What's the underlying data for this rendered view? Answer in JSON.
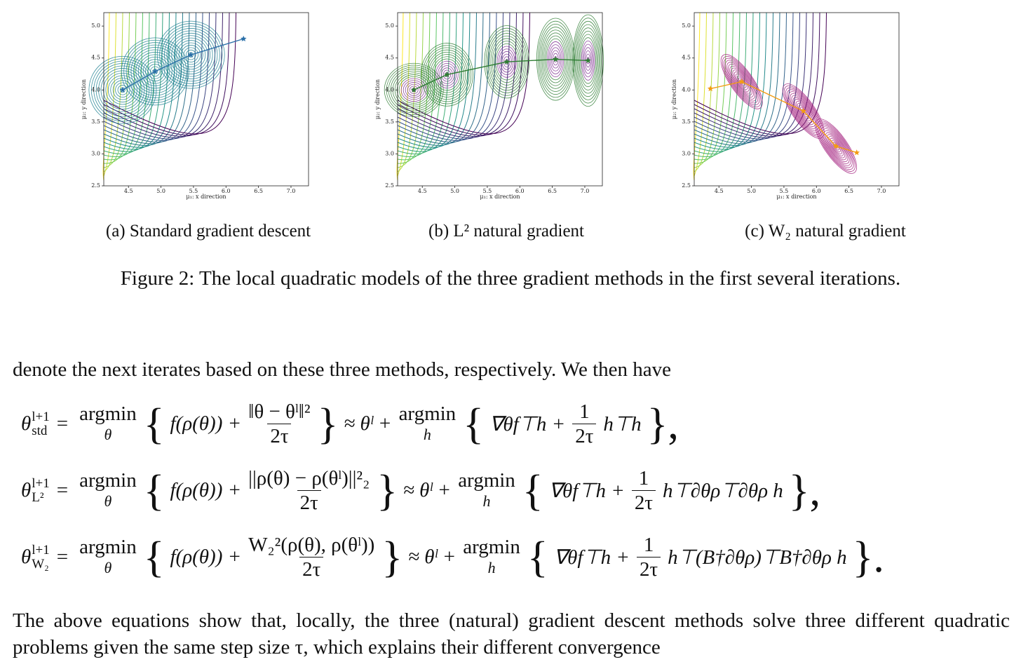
{
  "charts": [
    {
      "type": "line",
      "caption": "(a) Standard gradient descent",
      "xlabel": "μ₁: x direction",
      "ylabel": "μ₂: y direction",
      "xlim": [
        4.12,
        7.27
      ],
      "ylim": [
        2.5,
        5.21
      ],
      "xticks": [
        4.5,
        {
          "value": 5.0,
          "label": "5.0"
        },
        5.5,
        {
          "value": 6.0,
          "label": "6.0"
        },
        6.5,
        {
          "value": 7.0,
          "label": "7.0"
        }
      ],
      "yticks": [
        2.5,
        {
          "value": 3.0,
          "label": "3.0"
        },
        3.5,
        {
          "value": 4.0,
          "label": "4.0"
        },
        4.5,
        {
          "value": 5.0,
          "label": "5.0"
        }
      ],
      "series": [
        {
          "color": "#2a6fa8",
          "x": [
            4.41,
            4.91,
            5.46,
            6.27
          ],
          "values": [
            4.0,
            4.29,
            4.55,
            4.8
          ]
        }
      ]
    },
    {
      "type": "line",
      "caption": "(b) L² natural gradient",
      "xlabel": "μ₁: x direction",
      "ylabel": "μ₂: y direction",
      "xlim": [
        4.12,
        7.27
      ],
      "ylim": [
        2.5,
        5.21
      ],
      "xticks": [
        4.5,
        {
          "value": 5.0,
          "label": "5.0"
        },
        5.5,
        {
          "value": 6.0,
          "label": "6.0"
        },
        6.5,
        {
          "value": 7.0,
          "label": "7.0"
        }
      ],
      "yticks": [
        2.5,
        {
          "value": 3.0,
          "label": "3.0"
        },
        3.5,
        {
          "value": 4.0,
          "label": "4.0"
        },
        4.5,
        {
          "value": 5.0,
          "label": "5.0"
        }
      ],
      "series": [
        {
          "color": "#2e7d32",
          "x": [
            4.37,
            4.88,
            5.8,
            6.55,
            7.05
          ],
          "values": [
            4.0,
            4.24,
            4.44,
            4.48,
            4.46
          ]
        }
      ]
    },
    {
      "type": "line",
      "caption": "(c) W₂ natural gradient",
      "xlabel": "μ₁: x direction",
      "ylabel": "μ₂: y direction",
      "xlim": [
        4.12,
        7.27
      ],
      "ylim": [
        2.5,
        5.21
      ],
      "xticks": [
        4.5,
        {
          "value": 5.0,
          "label": "5.0"
        },
        5.5,
        {
          "value": 6.0,
          "label": "6.0"
        },
        6.5,
        {
          "value": 7.0,
          "label": "7.0"
        }
      ],
      "yticks": [
        2.5,
        {
          "value": 3.0,
          "label": "3.0"
        },
        3.5,
        {
          "value": 4.0,
          "label": "4.0"
        },
        4.5,
        {
          "value": 5.0,
          "label": "5.0"
        }
      ],
      "series": [
        {
          "color": "#f39c12",
          "x": [
            4.37,
            4.85,
            5.8,
            6.3,
            6.62
          ],
          "values": [
            4.02,
            4.13,
            3.67,
            3.12,
            3.02
          ]
        }
      ]
    }
  ],
  "figure_caption": "Figure 2: The local quadratic models of the three gradient methods in the first several iterations.",
  "intro": "denote the next iterates based on these three methods, respectively. We then have",
  "equations": [
    {
      "lhs": "θ",
      "sup": "l+1",
      "sub": "std",
      "eq": "=",
      "argmin": "argmin",
      "argmin_var": "θ",
      "open": "{",
      "f": "f(ρ(θ)) +",
      "num": "‖θ − θˡ‖²",
      "den": "2τ",
      "close": "}",
      "approx": "≈ θˡ +",
      "argmin2": "argmin",
      "argmin2_var": "h",
      "open2": "{",
      "grad": "∇θf⊤h +",
      "num2": "1",
      "den2": "2τ",
      "tail": "h⊤h",
      "end": "},"
    },
    {
      "lhs": "θ",
      "sup": "l+1",
      "sub": "L²",
      "eq": "=",
      "argmin": "argmin",
      "argmin_var": "θ",
      "open": "{",
      "f": "f(ρ(θ)) +",
      "num": "||ρ(θ) − ρ(θˡ)||²₂",
      "den": "2τ",
      "close": "}",
      "approx": "≈ θˡ +",
      "argmin2": "argmin",
      "argmin2_var": "h",
      "open2": "{",
      "grad": "∇θf⊤h +",
      "num2": "1",
      "den2": "2τ",
      "tail": "h⊤∂θρ⊤∂θρ h",
      "end": "},"
    },
    {
      "lhs": "θ",
      "sup": "l+1",
      "sub": "W₂",
      "eq": "=",
      "argmin": "argmin",
      "argmin_var": "θ",
      "open": "{",
      "f": "f(ρ(θ)) +",
      "num": "W₂²(ρ(θ), ρ(θˡ))",
      "den": "2τ",
      "close": "}",
      "approx": "≈ θˡ +",
      "argmin2": "argmin",
      "argmin2_var": "h",
      "open2": "{",
      "grad": "∇θf⊤h +",
      "num2": "1",
      "den2": "2τ",
      "tail": "h⊤(B†∂θρ)⊤B†∂θρ h",
      "end": "}."
    }
  ],
  "outro": "The above equations show that, locally, the three (natural) gradient descent methods solve three different quadratic problems given the same step size τ, which explains their different convergence"
}
